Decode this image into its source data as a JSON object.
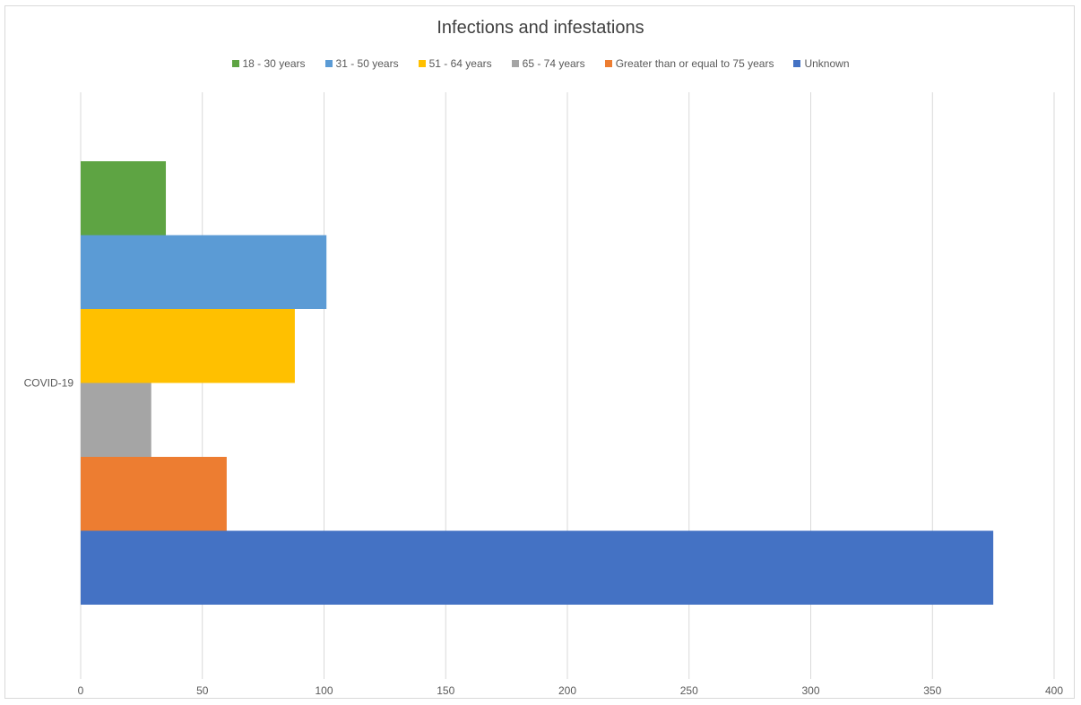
{
  "chart_data": {
    "type": "bar",
    "orientation": "horizontal",
    "title": "Infections and infestations",
    "categories": [
      "COVID-19"
    ],
    "series": [
      {
        "name": "18 - 30 years",
        "values": [
          35
        ],
        "color": "#5ea443"
      },
      {
        "name": "31 - 50 years",
        "values": [
          101
        ],
        "color": "#5b9bd5"
      },
      {
        "name": "51 - 64 years",
        "values": [
          88
        ],
        "color": "#ffc000"
      },
      {
        "name": "65 - 74 years",
        "values": [
          29
        ],
        "color": "#a5a5a5"
      },
      {
        "name": "Greater than or equal to 75 years",
        "values": [
          60
        ],
        "color": "#ed7d31"
      },
      {
        "name": "Unknown",
        "values": [
          375
        ],
        "color": "#4472c4"
      }
    ],
    "xlim": [
      0,
      400
    ],
    "xticks": [
      "0",
      "50",
      "100",
      "150",
      "200",
      "250",
      "300",
      "350",
      "400"
    ],
    "grid": true,
    "legend_position": "top"
  }
}
